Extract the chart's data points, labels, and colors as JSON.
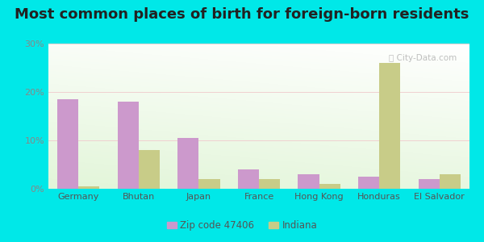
{
  "title": "Most common places of birth for foreign-born residents",
  "categories": [
    "Germany",
    "Bhutan",
    "Japan",
    "France",
    "Hong Kong",
    "Honduras",
    "El Salvador"
  ],
  "zip_values": [
    18.5,
    18.0,
    10.5,
    4.0,
    3.0,
    2.5,
    2.0
  ],
  "indiana_values": [
    0.5,
    8.0,
    2.0,
    2.0,
    1.0,
    26.0,
    3.0
  ],
  "zip_color": "#cc99cc",
  "indiana_color": "#c8cc88",
  "zip_label": "Zip code 47406",
  "indiana_label": "Indiana",
  "ylim": [
    0,
    30
  ],
  "yticks": [
    0,
    10,
    20,
    30
  ],
  "ytick_labels": [
    "0%",
    "10%",
    "20%",
    "30%"
  ],
  "outer_background": "#00e8e8",
  "title_fontsize": 13,
  "bar_width": 0.35,
  "tick_color": "#888888",
  "label_color": "#555555"
}
